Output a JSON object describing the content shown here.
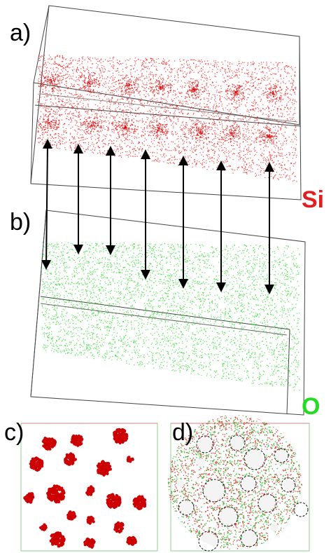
{
  "labels": {
    "a": "a)",
    "b": "b)",
    "c": "c)",
    "d": "d)"
  },
  "elements": {
    "si": {
      "text": "Si",
      "color": "#e02020"
    },
    "o": {
      "text": "O",
      "color": "#22dd22"
    }
  },
  "colors": {
    "si_points": "#e81616",
    "o_points": "#33dd33",
    "box_lines": "#444444",
    "clusters": "#cc0000"
  },
  "arrow_count": 7,
  "panel_d_marked_regions": 13
}
